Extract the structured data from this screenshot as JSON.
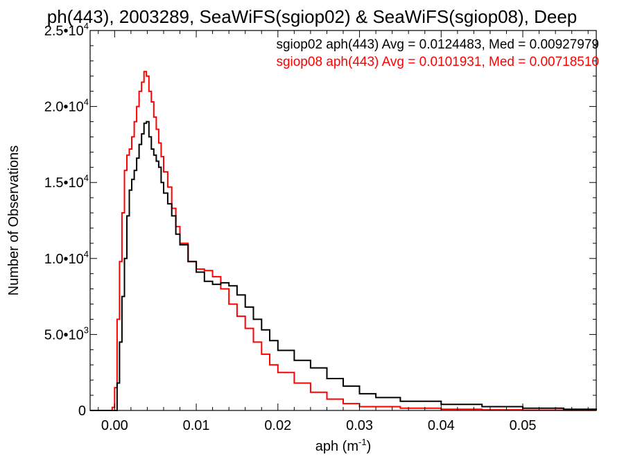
{
  "chart_data": {
    "type": "line",
    "style": "step-histogram",
    "title": "ph(443), 2003289, SeaWiFS(sgiop02) & SeaWiFS(sgiop08), Deep",
    "xlabel": "aph (m",
    "xlabel_sup": "-1",
    "xlabel_close": ")",
    "ylabel": "Number of Observations",
    "xlim": [
      -0.003,
      0.059
    ],
    "ylim": [
      0,
      25000
    ],
    "grid": false,
    "legend_position": "top-right",
    "x_ticks": [
      {
        "value": 0.0,
        "label": "0.00"
      },
      {
        "value": 0.01,
        "label": "0.01"
      },
      {
        "value": 0.02,
        "label": "0.02"
      },
      {
        "value": 0.03,
        "label": "0.03"
      },
      {
        "value": 0.04,
        "label": "0.04"
      },
      {
        "value": 0.05,
        "label": "0.05"
      }
    ],
    "y_ticks": [
      {
        "value": 0,
        "mant": "0",
        "exp": ""
      },
      {
        "value": 5000,
        "mant": "5.0•10",
        "exp": "3"
      },
      {
        "value": 10000,
        "mant": "1.0•10",
        "exp": "4"
      },
      {
        "value": 15000,
        "mant": "1.5•10",
        "exp": "4"
      },
      {
        "value": 20000,
        "mant": "2.0•10",
        "exp": "4"
      },
      {
        "value": 25000,
        "mant": "2.5•10",
        "exp": "4"
      }
    ],
    "series": [
      {
        "name": "sgiop02 aph(443) Avg = 0.0124483, Med = 0.00927979",
        "color": "#000000",
        "x": [
          -0.003,
          0.0,
          0.0003,
          0.0006,
          0.0009,
          0.0012,
          0.0015,
          0.0018,
          0.0021,
          0.0024,
          0.0027,
          0.003,
          0.0033,
          0.0036,
          0.0039,
          0.0042,
          0.0045,
          0.0048,
          0.0051,
          0.0054,
          0.0057,
          0.006,
          0.0065,
          0.007,
          0.0075,
          0.008,
          0.009,
          0.01,
          0.011,
          0.012,
          0.013,
          0.014,
          0.015,
          0.016,
          0.017,
          0.018,
          0.019,
          0.02,
          0.022,
          0.024,
          0.026,
          0.028,
          0.03,
          0.032,
          0.035,
          0.04,
          0.045,
          0.05,
          0.055,
          0.059
        ],
        "y": [
          0,
          0,
          1800,
          4500,
          7500,
          10000,
          12800,
          14500,
          15200,
          15800,
          16600,
          17500,
          18200,
          18900,
          19000,
          18000,
          17200,
          16800,
          16400,
          16000,
          15000,
          14300,
          13600,
          12800,
          11600,
          10900,
          9800,
          9100,
          8500,
          8300,
          8400,
          8200,
          7600,
          6800,
          6000,
          5300,
          4600,
          3950,
          3300,
          2800,
          2100,
          1600,
          1100,
          850,
          600,
          400,
          250,
          150,
          80,
          40
        ]
      },
      {
        "name": "sgiop08 aph(443) Avg = 0.0101931, Med = 0.00718510",
        "color": "#ff0000",
        "x": [
          -0.003,
          -0.0003,
          0.0,
          0.0003,
          0.0006,
          0.0009,
          0.0012,
          0.0015,
          0.0018,
          0.0021,
          0.0024,
          0.0027,
          0.003,
          0.0033,
          0.0036,
          0.0039,
          0.0042,
          0.0045,
          0.0048,
          0.0051,
          0.0054,
          0.0057,
          0.006,
          0.0065,
          0.007,
          0.0075,
          0.008,
          0.009,
          0.01,
          0.011,
          0.012,
          0.013,
          0.014,
          0.015,
          0.016,
          0.017,
          0.018,
          0.019,
          0.02,
          0.022,
          0.024,
          0.026,
          0.028,
          0.03,
          0.035,
          0.04,
          0.045,
          0.05,
          0.055,
          0.059
        ],
        "y": [
          0,
          200,
          1500,
          6000,
          9800,
          13000,
          15800,
          16800,
          17200,
          18000,
          19000,
          20000,
          21000,
          21600,
          22300,
          22000,
          21000,
          20300,
          19300,
          18500,
          17600,
          16700,
          15700,
          14700,
          13300,
          12100,
          11000,
          9800,
          9300,
          9200,
          8800,
          8000,
          7000,
          6200,
          5400,
          4500,
          3700,
          3000,
          2500,
          1800,
          1200,
          750,
          450,
          250,
          150,
          80,
          40,
          20,
          10,
          5
        ]
      }
    ]
  }
}
